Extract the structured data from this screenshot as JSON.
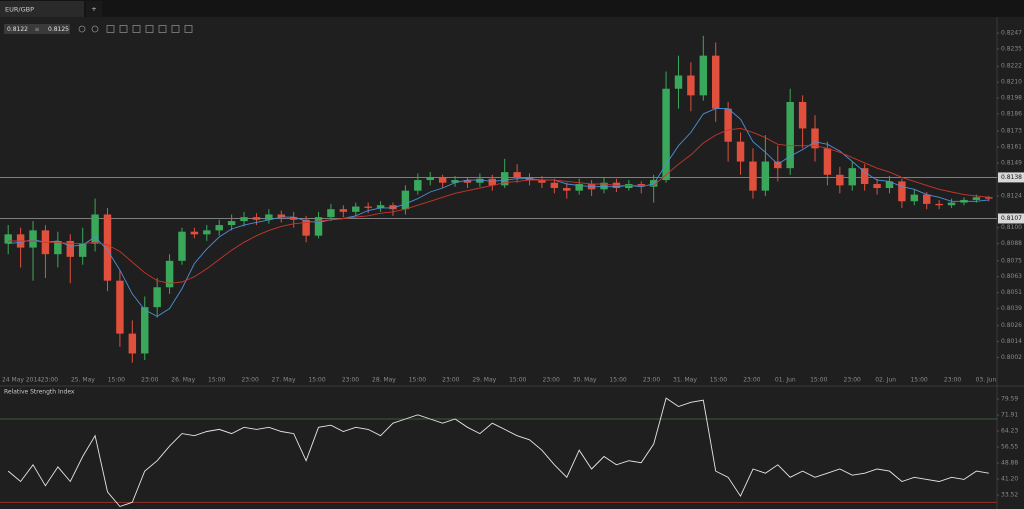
{
  "tab": {
    "label": "EUR/GBP",
    "add": "+"
  },
  "quote": {
    "bid": 0.8122,
    "separator": "≡",
    "ask": 0.8125
  },
  "chart_data": [
    {
      "type": "candlestick",
      "up_color": "#3aa85a",
      "down_color": "#e0503c",
      "open": [
        0.8088,
        0.8095,
        0.8085,
        0.8098,
        0.808,
        0.809,
        0.8078,
        0.8088,
        0.811,
        0.806,
        0.802,
        0.8005,
        0.804,
        0.8055,
        0.8075,
        0.8097,
        0.8095,
        0.8098,
        0.8102,
        0.8105,
        0.8108,
        0.8106,
        0.811,
        0.8108,
        0.8106,
        0.8094,
        0.8108,
        0.8114,
        0.8112,
        0.8116,
        0.8115,
        0.8117,
        0.8114,
        0.8128,
        0.8136,
        0.8138,
        0.8134,
        0.8136,
        0.8134,
        0.8137,
        0.8132,
        0.8142,
        0.8138,
        0.8136,
        0.8134,
        0.813,
        0.8128,
        0.8133,
        0.8129,
        0.8134,
        0.813,
        0.8133,
        0.8131,
        0.8136,
        0.8205,
        0.8215,
        0.82,
        0.823,
        0.819,
        0.8165,
        0.815,
        0.8128,
        0.815,
        0.8145,
        0.8195,
        0.8175,
        0.816,
        0.814,
        0.8132,
        0.8145,
        0.8133,
        0.813,
        0.8135,
        0.812,
        0.8125,
        0.8118,
        0.8117,
        0.8119,
        0.8121,
        0.8123
      ],
      "high": [
        0.8102,
        0.81,
        0.8105,
        0.8102,
        0.8097,
        0.8095,
        0.81,
        0.8122,
        0.8115,
        0.8068,
        0.803,
        0.8048,
        0.8062,
        0.808,
        0.81,
        0.81,
        0.8102,
        0.8106,
        0.811,
        0.8112,
        0.8111,
        0.8114,
        0.8113,
        0.8112,
        0.8109,
        0.8112,
        0.8118,
        0.8117,
        0.8119,
        0.8119,
        0.812,
        0.8119,
        0.8132,
        0.8141,
        0.8142,
        0.814,
        0.8139,
        0.8138,
        0.8141,
        0.814,
        0.8152,
        0.8148,
        0.8141,
        0.8139,
        0.8137,
        0.8134,
        0.8137,
        0.8136,
        0.8138,
        0.8137,
        0.8136,
        0.8135,
        0.814,
        0.8218,
        0.823,
        0.8225,
        0.8245,
        0.824,
        0.8195,
        0.8172,
        0.816,
        0.817,
        0.8162,
        0.8205,
        0.82,
        0.8185,
        0.8165,
        0.8146,
        0.815,
        0.8148,
        0.8137,
        0.8139,
        0.8137,
        0.8129,
        0.8127,
        0.8121,
        0.8122,
        0.8123,
        0.8125,
        0.8124
      ],
      "low": [
        0.808,
        0.807,
        0.806,
        0.8062,
        0.807,
        0.8058,
        0.8072,
        0.8082,
        0.8052,
        0.801,
        0.7998,
        0.8,
        0.8032,
        0.805,
        0.8072,
        0.8092,
        0.809,
        0.8094,
        0.8098,
        0.8101,
        0.8102,
        0.8103,
        0.8104,
        0.81,
        0.8089,
        0.8092,
        0.8105,
        0.8108,
        0.8109,
        0.8111,
        0.8112,
        0.8109,
        0.811,
        0.8125,
        0.8132,
        0.813,
        0.8131,
        0.813,
        0.8131,
        0.8128,
        0.813,
        0.8134,
        0.8132,
        0.813,
        0.8126,
        0.8122,
        0.8125,
        0.8124,
        0.8126,
        0.8127,
        0.8128,
        0.8126,
        0.8119,
        0.8134,
        0.819,
        0.8188,
        0.8196,
        0.818,
        0.815,
        0.814,
        0.8122,
        0.8124,
        0.8135,
        0.814,
        0.816,
        0.815,
        0.8132,
        0.8126,
        0.8128,
        0.8128,
        0.8125,
        0.8126,
        0.8115,
        0.8117,
        0.8114,
        0.8114,
        0.8115,
        0.8117,
        0.8119,
        0.812
      ],
      "close": [
        0.8095,
        0.8085,
        0.8098,
        0.808,
        0.809,
        0.8078,
        0.8088,
        0.811,
        0.806,
        0.802,
        0.8005,
        0.804,
        0.8055,
        0.8075,
        0.8097,
        0.8095,
        0.8098,
        0.8102,
        0.8105,
        0.8108,
        0.8106,
        0.811,
        0.8108,
        0.8106,
        0.8094,
        0.8108,
        0.8114,
        0.8112,
        0.8116,
        0.8115,
        0.8117,
        0.8114,
        0.8128,
        0.8136,
        0.8138,
        0.8134,
        0.8136,
        0.8134,
        0.8137,
        0.8132,
        0.8142,
        0.8138,
        0.8136,
        0.8134,
        0.813,
        0.8128,
        0.8133,
        0.8129,
        0.8134,
        0.813,
        0.8133,
        0.8131,
        0.8136,
        0.8205,
        0.8215,
        0.82,
        0.823,
        0.819,
        0.8165,
        0.815,
        0.8128,
        0.815,
        0.8145,
        0.8195,
        0.8175,
        0.816,
        0.814,
        0.8132,
        0.8145,
        0.8133,
        0.813,
        0.8135,
        0.812,
        0.8125,
        0.8118,
        0.8117,
        0.8119,
        0.8121,
        0.8123,
        0.8122
      ],
      "series": [
        {
          "color": "#4a90d9",
          "values": [
            0.8088,
            0.8089,
            0.8091,
            0.8089,
            0.809,
            0.8086,
            0.8087,
            0.8093,
            0.8083,
            0.8068,
            0.805,
            0.8038,
            0.8033,
            0.8039,
            0.8054,
            0.8073,
            0.8084,
            0.8093,
            0.8099,
            0.8102,
            0.8104,
            0.8106,
            0.8108,
            0.8108,
            0.8105,
            0.8104,
            0.8106,
            0.8107,
            0.8109,
            0.8113,
            0.8115,
            0.8115,
            0.8118,
            0.8122,
            0.8127,
            0.813,
            0.8134,
            0.8136,
            0.8136,
            0.8135,
            0.8136,
            0.8137,
            0.8137,
            0.8136,
            0.8136,
            0.8133,
            0.8132,
            0.8131,
            0.8131,
            0.8131,
            0.8132,
            0.8131,
            0.8133,
            0.8148,
            0.8162,
            0.8172,
            0.8186,
            0.819,
            0.819,
            0.8182,
            0.8165,
            0.8157,
            0.8148,
            0.8154,
            0.8159,
            0.8165,
            0.8163,
            0.8158,
            0.815,
            0.8142,
            0.8136,
            0.8135,
            0.8131,
            0.8129,
            0.8125,
            0.8123,
            0.812,
            0.812,
            0.812,
            0.8121
          ]
        },
        {
          "color": "#c8362c",
          "values": [
            0.809,
            0.809,
            0.809,
            0.8089,
            0.8089,
            0.8088,
            0.8088,
            0.8089,
            0.8087,
            0.8082,
            0.8074,
            0.8066,
            0.806,
            0.8058,
            0.8059,
            0.8063,
            0.8069,
            0.8076,
            0.8083,
            0.8089,
            0.8094,
            0.8098,
            0.8101,
            0.8103,
            0.8104,
            0.8105,
            0.8106,
            0.8107,
            0.8108,
            0.8109,
            0.8111,
            0.8112,
            0.8114,
            0.8117,
            0.812,
            0.8123,
            0.8126,
            0.8128,
            0.813,
            0.8132,
            0.8134,
            0.8135,
            0.8136,
            0.8136,
            0.8136,
            0.8135,
            0.8134,
            0.8133,
            0.8133,
            0.8132,
            0.8132,
            0.8132,
            0.8132,
            0.814,
            0.8148,
            0.8155,
            0.8164,
            0.817,
            0.8174,
            0.8175,
            0.8172,
            0.8168,
            0.8163,
            0.8162,
            0.8162,
            0.8162,
            0.816,
            0.8157,
            0.8153,
            0.8149,
            0.8145,
            0.8142,
            0.8138,
            0.8135,
            0.8132,
            0.8129,
            0.8127,
            0.8125,
            0.8124,
            0.8123
          ]
        }
      ],
      "ylim": [
        0.7991,
        0.8266
      ],
      "yticks": [
        0.8247,
        0.8235,
        0.8222,
        {
          "value": 0.821,
          "label": "0.8210"
        },
        0.8198,
        0.8186,
        0.8173,
        0.8161,
        0.8149,
        0.8124,
        {
          "value": 0.81,
          "label": "0.8100"
        },
        0.8088,
        0.8075,
        0.8063,
        0.8051,
        0.8039,
        0.8026,
        0.8014,
        0.8002
      ],
      "levels": [
        0.8138,
        0.8107
      ],
      "level_color": "#8c8c8c",
      "xtick_labels": [
        "24 May 2014",
        "23:00",
        "25. May",
        "15:00",
        "23:00",
        "26. May",
        "15:00",
        "23:00",
        "27. May",
        "15:00",
        "23:00",
        "28. May",
        "15:00",
        "23:00",
        "29. May",
        "15:00",
        "23:00",
        "30. May",
        "15:00",
        "23:00",
        "31. May",
        "15:00",
        "23:00",
        "01. Jun",
        "15:00",
        "23:00",
        "02. Jun",
        "15:00",
        "23:00",
        "03. Jun"
      ]
    },
    {
      "type": "line",
      "title": "Relative Strength Index",
      "color": "#e6e6e6",
      "values": [
        45,
        40,
        48,
        38,
        47,
        40,
        52,
        62,
        35,
        28,
        30,
        45,
        50,
        57,
        63,
        62,
        64,
        65,
        63,
        66,
        65,
        66,
        64,
        63,
        50,
        66,
        67,
        64,
        66,
        65,
        62,
        68,
        70,
        72,
        70,
        68,
        70,
        66,
        63,
        68,
        65,
        62,
        60,
        55,
        48,
        42,
        55,
        46,
        52,
        48,
        50,
        49,
        58,
        80,
        76,
        78,
        79,
        45,
        42,
        33,
        46,
        44,
        48,
        42,
        45,
        42,
        44,
        46,
        43,
        44,
        46,
        45,
        40,
        42,
        41,
        40,
        42,
        41,
        45,
        44
      ],
      "ylim": [
        26.8,
        82.95
      ],
      "yticks": [
        79.59,
        71.91,
        64.23,
        56.55,
        48.88,
        {
          "value": 41.2,
          "label": "41.20"
        },
        33.52
      ],
      "levels": [
        70,
        30
      ],
      "level_colors": [
        "#3f7a3f",
        "#a8322a"
      ]
    }
  ]
}
